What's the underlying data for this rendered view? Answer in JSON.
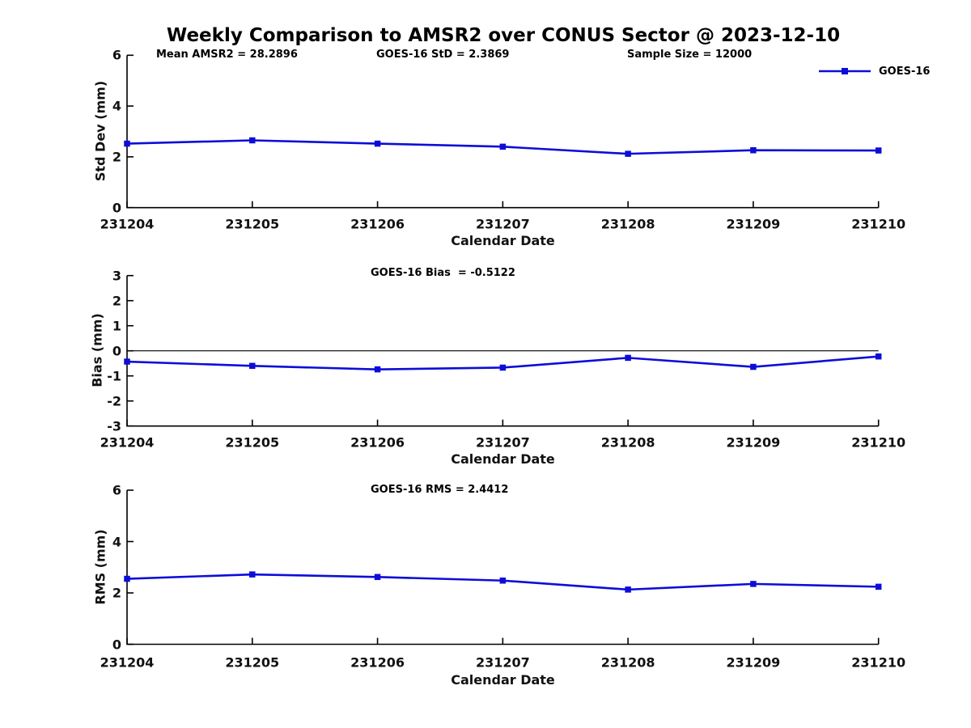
{
  "header": {
    "title": "Weekly Comparison to AMSR2 over CONUS Sector @ 2023-12-10"
  },
  "legend": {
    "label": "GOES-16"
  },
  "colors": {
    "line": "#0d0dd8",
    "marker": "#0d0dd8",
    "axis": "#000000",
    "text": "#111111",
    "background": "#ffffff"
  },
  "chart_data": [
    {
      "type": "line",
      "panel": "std-dev",
      "annotations": [
        "Mean AMSR2 = 28.2896",
        "GOES-16 StD = 2.3869",
        "Sample Size = 12000"
      ],
      "xlabel": "Calendar Date",
      "ylabel": "Std Dev (mm)",
      "categories": [
        "231204",
        "231205",
        "231206",
        "231207",
        "231208",
        "231209",
        "231210"
      ],
      "series": [
        {
          "name": "GOES-16",
          "values": [
            2.52,
            2.65,
            2.52,
            2.4,
            2.12,
            2.26,
            2.25
          ]
        }
      ],
      "ylim": [
        0,
        6
      ],
      "yticks": [
        0,
        2,
        4,
        6
      ],
      "zero_line": false,
      "grid": false,
      "legend_position": "outside-top-right"
    },
    {
      "type": "line",
      "panel": "bias",
      "annotations": [
        "GOES-16 Bias  = -0.5122"
      ],
      "xlabel": "Calendar Date",
      "ylabel": "Bias (mm)",
      "categories": [
        "231204",
        "231205",
        "231206",
        "231207",
        "231208",
        "231209",
        "231210"
      ],
      "series": [
        {
          "name": "GOES-16",
          "values": [
            -0.43,
            -0.6,
            -0.74,
            -0.67,
            -0.28,
            -0.64,
            -0.225
          ]
        }
      ],
      "ylim": [
        -3,
        3
      ],
      "yticks": [
        -3,
        -2,
        -1,
        0,
        1,
        2,
        3
      ],
      "zero_line": true,
      "grid": false
    },
    {
      "type": "line",
      "panel": "rms",
      "annotations": [
        "GOES-16 RMS = 2.4412"
      ],
      "xlabel": "Calendar Date",
      "ylabel": "RMS (mm)",
      "categories": [
        "231204",
        "231205",
        "231206",
        "231207",
        "231208",
        "231209",
        "231210"
      ],
      "series": [
        {
          "name": "GOES-16",
          "values": [
            2.55,
            2.72,
            2.62,
            2.48,
            2.13,
            2.35,
            2.24
          ]
        }
      ],
      "ylim": [
        0,
        6
      ],
      "yticks": [
        0,
        2,
        4,
        6
      ],
      "zero_line": false,
      "grid": false
    }
  ]
}
